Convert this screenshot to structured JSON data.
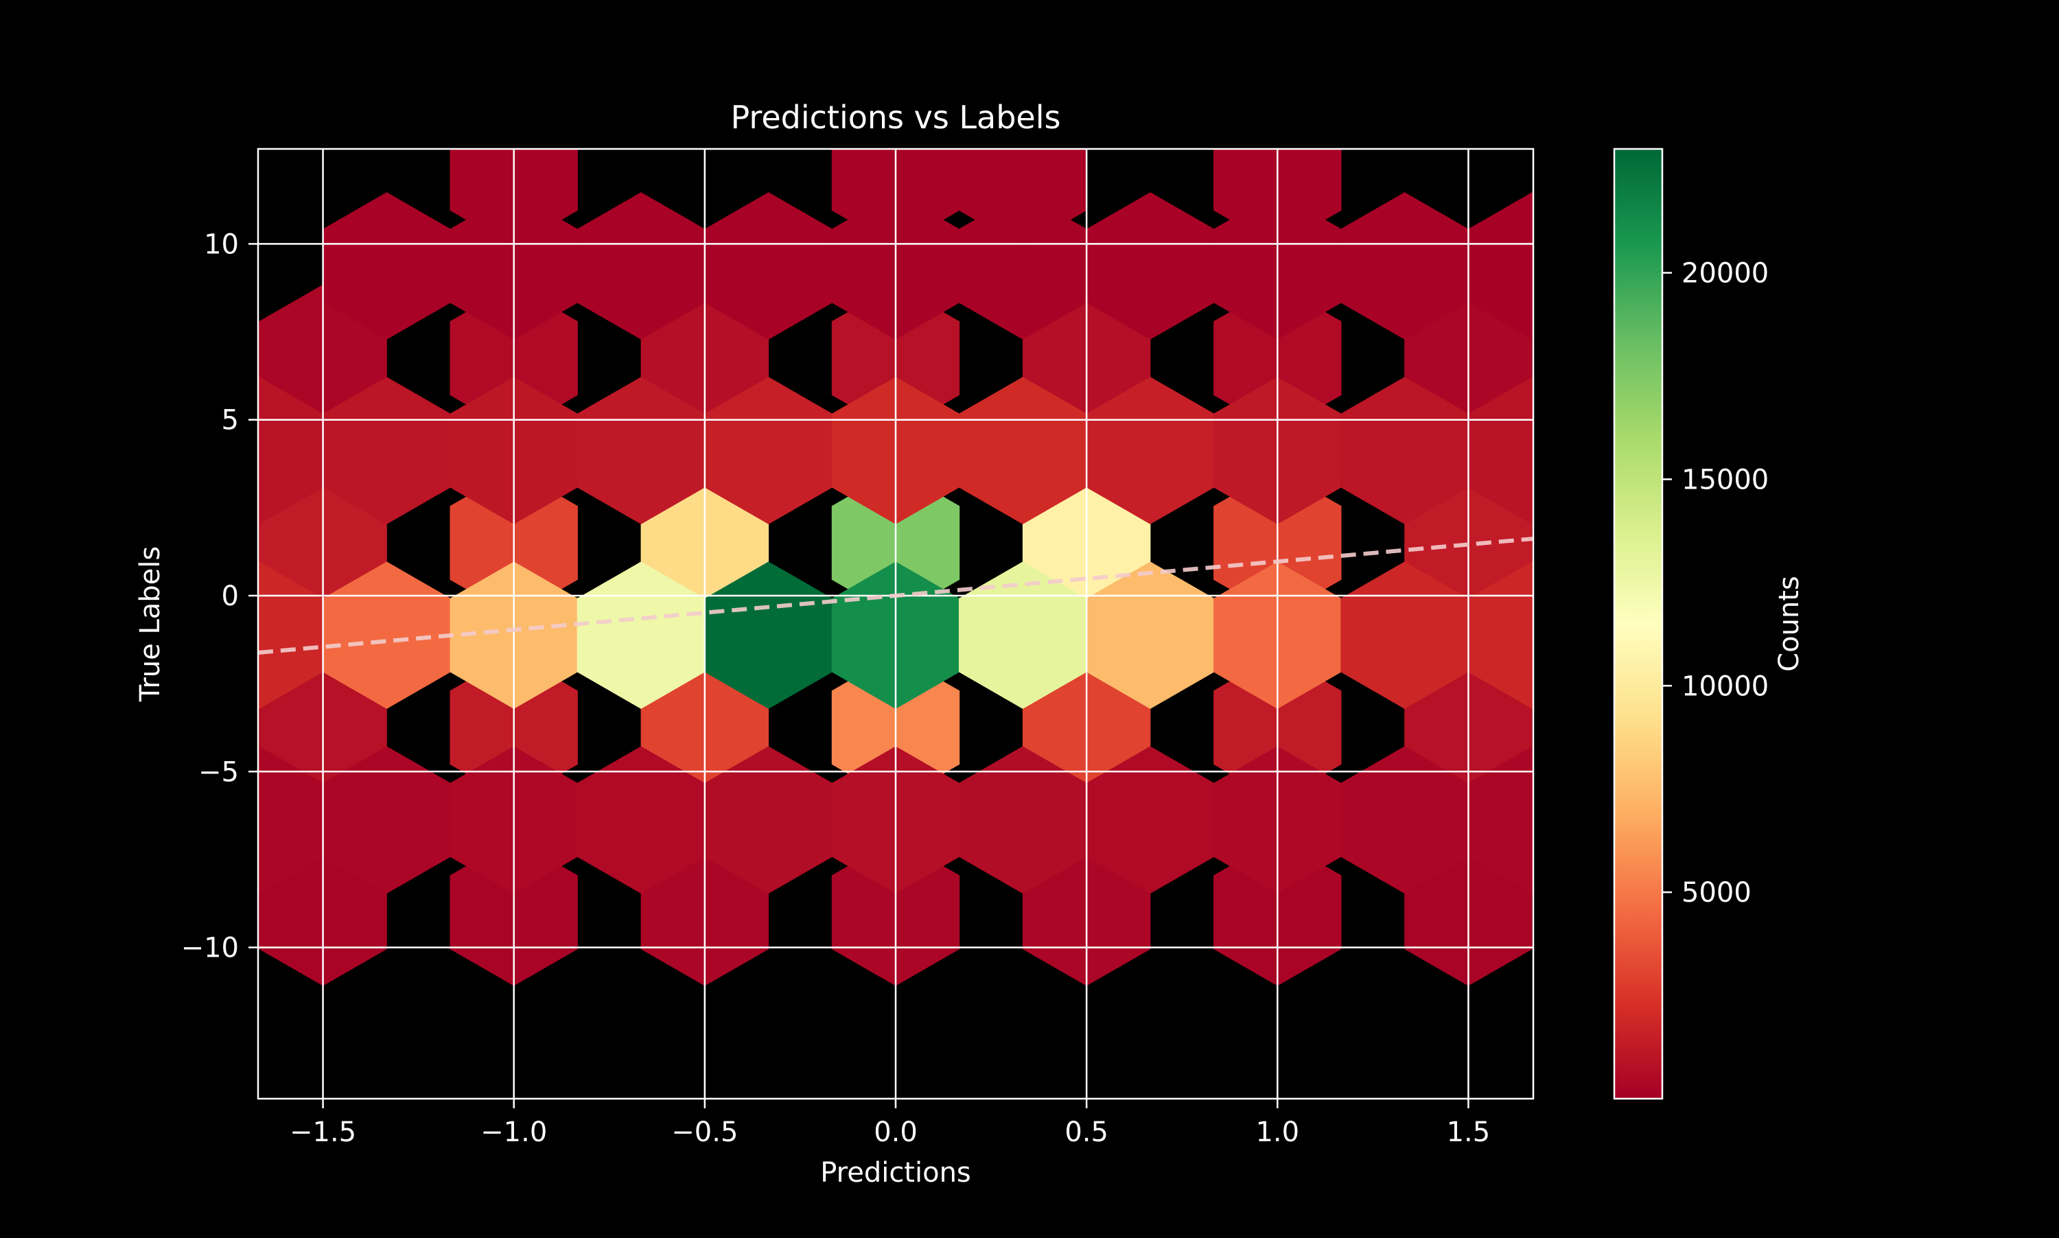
{
  "chart_data": {
    "type": "heatmap",
    "subtype": "hexbin",
    "title": "Predictions vs Labels",
    "xlabel": "Predictions",
    "ylabel": "True Labels",
    "xlim": [
      -1.67,
      1.67
    ],
    "ylim": [
      -14.3,
      12.7
    ],
    "xticks": [
      -1.5,
      -1.0,
      -0.5,
      0.0,
      0.5,
      1.0,
      1.5
    ],
    "xtick_labels": [
      "−1.5",
      "−1.0",
      "−0.5",
      "0.0",
      "0.5",
      "1.0",
      "1.5"
    ],
    "yticks": [
      -10,
      -5,
      0,
      5,
      10
    ],
    "ytick_labels": [
      "−10",
      "−5",
      "0",
      "5",
      "10"
    ],
    "grid": true,
    "background": "#000000",
    "colormap": "RdYlGn",
    "colorbar": {
      "label": "Counts",
      "min": 0,
      "max": 23000,
      "ticks": [
        5000,
        10000,
        15000,
        20000
      ],
      "tick_labels": [
        "5000",
        "10000",
        "15000",
        "20000"
      ]
    },
    "hex_cells": [
      {
        "x": -1.5,
        "y": 6.75,
        "count": 300
      },
      {
        "x": -1.0,
        "y": 6.75,
        "count": 500
      },
      {
        "x": -0.5,
        "y": 6.75,
        "count": 700
      },
      {
        "x": 0.0,
        "y": 6.75,
        "count": 800
      },
      {
        "x": 0.5,
        "y": 6.75,
        "count": 700
      },
      {
        "x": 1.0,
        "y": 6.75,
        "count": 500
      },
      {
        "x": 1.5,
        "y": 6.75,
        "count": 300
      },
      {
        "x": -1.5,
        "y": 1.5,
        "count": 1300
      },
      {
        "x": -1.0,
        "y": 1.5,
        "count": 3000
      },
      {
        "x": -0.5,
        "y": 1.5,
        "count": 9000
      },
      {
        "x": 0.0,
        "y": 1.5,
        "count": 17500
      },
      {
        "x": 0.5,
        "y": 1.5,
        "count": 10500
      },
      {
        "x": 1.0,
        "y": 1.5,
        "count": 3000
      },
      {
        "x": 1.5,
        "y": 1.5,
        "count": 1300
      },
      {
        "x": -1.5,
        "y": -3.75,
        "count": 800
      },
      {
        "x": -1.0,
        "y": -3.75,
        "count": 1300
      },
      {
        "x": -0.5,
        "y": -3.75,
        "count": 3000
      },
      {
        "x": 0.0,
        "y": -3.75,
        "count": 5500
      },
      {
        "x": 0.5,
        "y": -3.75,
        "count": 3000
      },
      {
        "x": 1.0,
        "y": -3.75,
        "count": 1300
      },
      {
        "x": 1.5,
        "y": -3.75,
        "count": 800
      },
      {
        "x": -1.5,
        "y": -9.0,
        "count": 200
      },
      {
        "x": -1.0,
        "y": -9.0,
        "count": 200
      },
      {
        "x": -0.5,
        "y": -9.0,
        "count": 300
      },
      {
        "x": 0.0,
        "y": -9.0,
        "count": 300
      },
      {
        "x": 0.5,
        "y": -9.0,
        "count": 300
      },
      {
        "x": 1.0,
        "y": -9.0,
        "count": 200
      },
      {
        "x": 1.5,
        "y": -9.0,
        "count": 200
      },
      {
        "x": -1.667,
        "y": 9.375,
        "count": 0
      },
      {
        "x": -1.333,
        "y": 9.375,
        "count": 150
      },
      {
        "x": -1.0,
        "y": 9.375,
        "count": 150
      },
      {
        "x": -0.667,
        "y": 9.375,
        "count": 150
      },
      {
        "x": -0.333,
        "y": 9.375,
        "count": 150
      },
      {
        "x": 0.0,
        "y": 9.375,
        "count": 150
      },
      {
        "x": 0.333,
        "y": 9.375,
        "count": 150
      },
      {
        "x": 0.667,
        "y": 9.375,
        "count": 150
      },
      {
        "x": 1.0,
        "y": 9.375,
        "count": 150
      },
      {
        "x": 1.333,
        "y": 9.375,
        "count": 150
      },
      {
        "x": 1.667,
        "y": 9.375,
        "count": 100
      },
      {
        "x": -1.667,
        "y": 4.125,
        "count": 900
      },
      {
        "x": -1.333,
        "y": 4.125,
        "count": 1000
      },
      {
        "x": -1.0,
        "y": 4.125,
        "count": 1100
      },
      {
        "x": -0.667,
        "y": 4.125,
        "count": 1200
      },
      {
        "x": -0.333,
        "y": 4.125,
        "count": 1500
      },
      {
        "x": 0.0,
        "y": 4.125,
        "count": 2000
      },
      {
        "x": 0.333,
        "y": 4.125,
        "count": 2000
      },
      {
        "x": 0.667,
        "y": 4.125,
        "count": 1500
      },
      {
        "x": 1.0,
        "y": 4.125,
        "count": 1200
      },
      {
        "x": 1.333,
        "y": 4.125,
        "count": 1000
      },
      {
        "x": 1.667,
        "y": 4.125,
        "count": 900
      },
      {
        "x": -1.667,
        "y": -1.125,
        "count": 1800
      },
      {
        "x": -1.333,
        "y": -1.125,
        "count": 4500
      },
      {
        "x": -1.0,
        "y": -1.125,
        "count": 7500
      },
      {
        "x": -0.667,
        "y": -1.125,
        "count": 12500
      },
      {
        "x": -0.333,
        "y": -1.125,
        "count": 22800
      },
      {
        "x": 0.0,
        "y": -1.125,
        "count": 21200
      },
      {
        "x": 0.333,
        "y": -1.125,
        "count": 13000
      },
      {
        "x": 0.667,
        "y": -1.125,
        "count": 7500
      },
      {
        "x": 1.0,
        "y": -1.125,
        "count": 4500
      },
      {
        "x": 1.333,
        "y": -1.125,
        "count": 1800
      },
      {
        "x": 1.667,
        "y": -1.125,
        "count": 1800
      },
      {
        "x": -1.667,
        "y": -6.375,
        "count": 300
      },
      {
        "x": -1.333,
        "y": -6.375,
        "count": 300
      },
      {
        "x": -1.0,
        "y": -6.375,
        "count": 400
      },
      {
        "x": -0.667,
        "y": -6.375,
        "count": 500
      },
      {
        "x": -0.333,
        "y": -6.375,
        "count": 600
      },
      {
        "x": 0.0,
        "y": -6.375,
        "count": 700
      },
      {
        "x": 0.333,
        "y": -6.375,
        "count": 600
      },
      {
        "x": 0.667,
        "y": -6.375,
        "count": 500
      },
      {
        "x": 1.0,
        "y": -6.375,
        "count": 400
      },
      {
        "x": 1.333,
        "y": -6.375,
        "count": 300
      },
      {
        "x": 1.667,
        "y": -6.375,
        "count": 300
      },
      {
        "x": -1.333,
        "y": -11.625,
        "count": 0
      },
      {
        "x": -1.0,
        "y": 12.0,
        "count": 150
      },
      {
        "x": 0.0,
        "y": 12.0,
        "count": 150
      },
      {
        "x": 0.333,
        "y": 12.0,
        "count": 150
      },
      {
        "x": 1.0,
        "y": 12.0,
        "count": 150
      }
    ],
    "trend_line": {
      "style": "dashed",
      "color": "#f4cccc",
      "x": [
        -1.67,
        1.67
      ],
      "y": [
        -1.62,
        1.62
      ]
    }
  }
}
